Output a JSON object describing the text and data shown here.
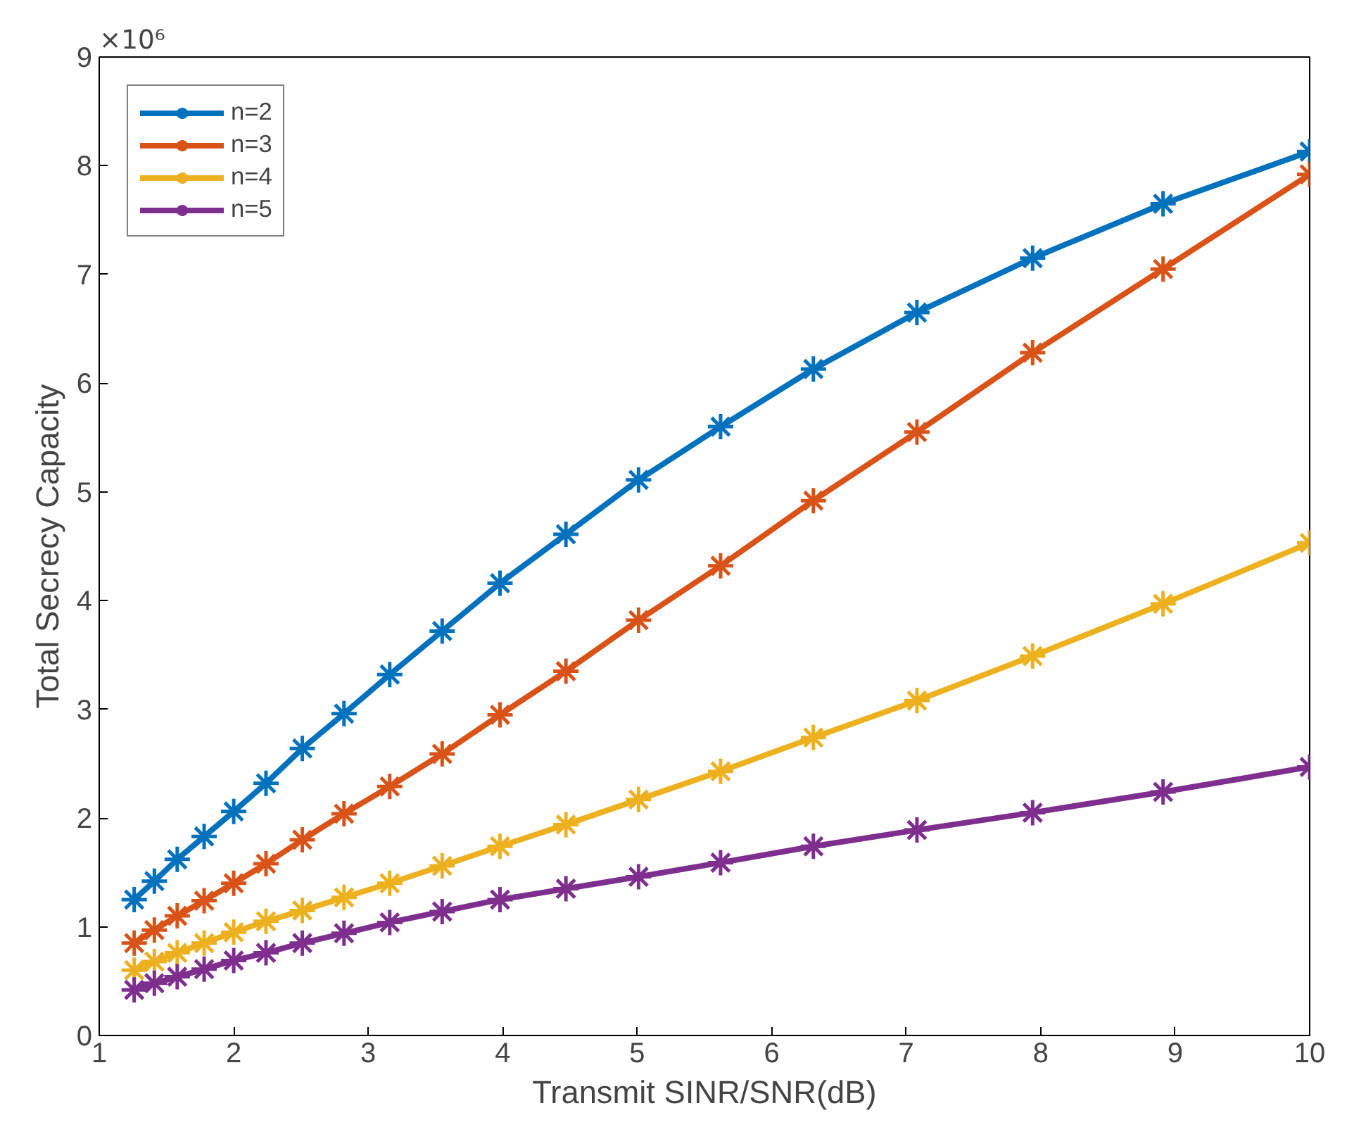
{
  "chart_data": {
    "type": "line",
    "xlabel": "Transmit SINR/SNR(dB)",
    "ylabel": "Total Secrecy Capacity",
    "annotations": [
      "×10⁶"
    ],
    "x": [
      1.26,
      1.41,
      1.58,
      1.78,
      2,
      2.24,
      2.51,
      2.82,
      3.16,
      3.55,
      3.98,
      4.47,
      5.01,
      5.62,
      6.31,
      7.08,
      7.94,
      8.91,
      10
    ],
    "series": [
      {
        "name": "n=2",
        "color": "#0072bd",
        "values": [
          1.25,
          1.42,
          1.62,
          1.83,
          2.06,
          2.32,
          2.64,
          2.96,
          3.32,
          3.72,
          4.16,
          4.61,
          5.11,
          5.6,
          6.13,
          6.65,
          7.15,
          7.65,
          8.13
        ]
      },
      {
        "name": "n=3",
        "color": "#d95319",
        "values": [
          0.85,
          0.97,
          1.1,
          1.24,
          1.4,
          1.58,
          1.8,
          2.04,
          2.29,
          2.59,
          2.95,
          3.35,
          3.82,
          4.32,
          4.92,
          5.55,
          6.28,
          7.05,
          7.92
        ]
      },
      {
        "name": "n=4",
        "color": "#edb120",
        "values": [
          0.6,
          0.68,
          0.76,
          0.85,
          0.95,
          1.05,
          1.15,
          1.27,
          1.4,
          1.56,
          1.74,
          1.94,
          2.17,
          2.43,
          2.74,
          3.08,
          3.49,
          3.97,
          4.53
        ]
      },
      {
        "name": "n=5",
        "color": "#7e2f8e",
        "values": [
          0.42,
          0.48,
          0.54,
          0.61,
          0.69,
          0.76,
          0.85,
          0.94,
          1.04,
          1.14,
          1.25,
          1.35,
          1.46,
          1.59,
          1.74,
          1.89,
          2.05,
          2.24,
          2.47
        ]
      }
    ],
    "xlim": [
      1,
      10
    ],
    "xticks": [
      1,
      2,
      3,
      4,
      5,
      6,
      7,
      8,
      9,
      10
    ],
    "ylim": [
      0,
      9
    ],
    "yticks": [
      0,
      1,
      2,
      3,
      4,
      5,
      6,
      7,
      8,
      9
    ],
    "grid": false,
    "legend": "top left",
    "marker": "cross",
    "line_style": "solid"
  }
}
